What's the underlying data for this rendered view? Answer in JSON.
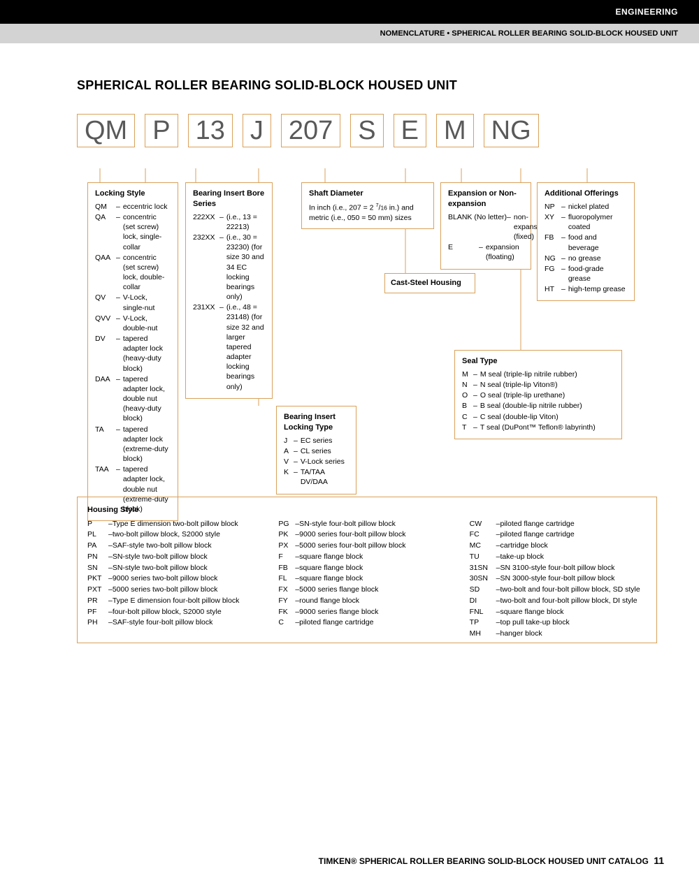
{
  "header": {
    "category": "ENGINEERING",
    "subtitle": "NOMENCLATURE • SPHERICAL ROLLER BEARING SOLID-BLOCK HOUSED UNIT"
  },
  "title": "SPHERICAL ROLLER BEARING SOLID-BLOCK HOUSED UNIT",
  "code_parts": [
    "QM",
    "P",
    "13",
    "J",
    "207",
    "S",
    "E",
    "M",
    "NG"
  ],
  "colors": {
    "box_border": "#d9a15a",
    "code_text": "#595959",
    "line": "#d9a15a",
    "black": "#000000",
    "gray_bg": "#d3d3d3"
  },
  "locking_style": {
    "title": "Locking Style",
    "items": [
      {
        "code": "QM",
        "desc": "eccentric lock"
      },
      {
        "code": "QA",
        "desc": "concentric (set screw) lock, single-collar"
      },
      {
        "code": "QAA",
        "desc": "concentric (set screw) lock, double-collar"
      },
      {
        "code": "QV",
        "desc": "V-Lock, single-nut"
      },
      {
        "code": "QVV",
        "desc": "V-Lock, double-nut"
      },
      {
        "code": "DV",
        "desc": "tapered adapter lock (heavy-duty block)"
      },
      {
        "code": "DAA",
        "desc": "tapered adapter lock, double nut (heavy-duty block)"
      },
      {
        "code": "TA",
        "desc": "tapered adapter lock (extreme-duty block)"
      },
      {
        "code": "TAA",
        "desc": "tapered adapter lock, double nut (extreme-duty block)"
      }
    ]
  },
  "bearing_insert": {
    "title": "Bearing Insert Bore Series",
    "items": [
      {
        "code": "222XX",
        "desc": "(i.e., 13 = 22213)"
      },
      {
        "code": "232XX",
        "desc": "(i.e., 30 = 23230) (for size 30 and 34 EC locking bearings only)"
      },
      {
        "code": "231XX",
        "desc": "(i.e., 48 = 23148) (for size 32 and larger tapered adapter locking bearings only)"
      }
    ]
  },
  "locking_type": {
    "title": "Bearing Insert Locking Type",
    "items": [
      {
        "code": "J",
        "desc": "EC series"
      },
      {
        "code": "A",
        "desc": "CL series"
      },
      {
        "code": "V",
        "desc": "V-Lock series"
      },
      {
        "code": "K",
        "desc": "TA/TAA DV/DAA"
      }
    ]
  },
  "shaft_diameter": {
    "title": "Shaft Diameter",
    "desc": "In inch (i.e., 207 = 2 7/16 in.) and metric (i.e., 050 = 50 mm) sizes"
  },
  "cast_steel": {
    "title": "Cast-Steel Housing"
  },
  "expansion": {
    "title": "Expansion or Non-expansion",
    "items": [
      {
        "code": "BLANK (No letter)",
        "desc": "non-expansion (fixed)"
      },
      {
        "code": "E",
        "desc": "expansion (floating)"
      }
    ]
  },
  "seal_type": {
    "title": "Seal Type",
    "items": [
      {
        "code": "M",
        "desc": "M seal (triple-lip nitrile rubber)"
      },
      {
        "code": "N",
        "desc": "N seal (triple-lip Viton®)"
      },
      {
        "code": "O",
        "desc": "O seal (triple-lip urethane)"
      },
      {
        "code": "B",
        "desc": "B seal (double-lip nitrile rubber)"
      },
      {
        "code": "C",
        "desc": "C seal (double-lip Viton)"
      },
      {
        "code": "T",
        "desc": "T seal (DuPont™ Teflon® labyrinth)"
      }
    ]
  },
  "additional": {
    "title": "Additional Offerings",
    "items": [
      {
        "code": "NP",
        "desc": "nickel plated"
      },
      {
        "code": "XY",
        "desc": "fluoropolymer coated"
      },
      {
        "code": "FB",
        "desc": "food and beverage"
      },
      {
        "code": "NG",
        "desc": "no grease"
      },
      {
        "code": "FG",
        "desc": "food-grade grease"
      },
      {
        "code": "HT",
        "desc": "high-temp grease"
      }
    ]
  },
  "housing": {
    "title": "Housing Style",
    "col1": [
      {
        "code": "P",
        "desc": "Type E dimension two-bolt pillow block"
      },
      {
        "code": "PL",
        "desc": "two-bolt pillow block, S2000 style"
      },
      {
        "code": "PA",
        "desc": "SAF-style two-bolt pillow block"
      },
      {
        "code": "PN",
        "desc": "SN-style two-bolt pillow block"
      },
      {
        "code": "SN",
        "desc": "SN-style two-bolt pillow block"
      },
      {
        "code": "PKT",
        "desc": "9000 series two-bolt pillow block"
      },
      {
        "code": "PXT",
        "desc": "5000 series two-bolt pillow block"
      },
      {
        "code": "PR",
        "desc": "Type E dimension four-bolt pillow block"
      },
      {
        "code": "PF",
        "desc": "four-bolt pillow block, S2000 style"
      },
      {
        "code": "PH",
        "desc": "SAF-style four-bolt pillow block"
      }
    ],
    "col2": [
      {
        "code": "PG",
        "desc": "SN-style four-bolt pillow block"
      },
      {
        "code": "PK",
        "desc": "9000 series four-bolt pillow block"
      },
      {
        "code": "PX",
        "desc": "5000 series four-bolt pillow block"
      },
      {
        "code": "F",
        "desc": "square flange block"
      },
      {
        "code": "FB",
        "desc": "square flange block"
      },
      {
        "code": "FL",
        "desc": "square flange block"
      },
      {
        "code": "FX",
        "desc": "5000 series flange block"
      },
      {
        "code": "FY",
        "desc": "round flange block"
      },
      {
        "code": "FK",
        "desc": "9000 series flange block"
      },
      {
        "code": "C",
        "desc": "piloted flange cartridge"
      }
    ],
    "col3": [
      {
        "code": "CW",
        "desc": "piloted flange cartridge"
      },
      {
        "code": "FC",
        "desc": "piloted flange cartridge"
      },
      {
        "code": "MC",
        "desc": "cartridge block"
      },
      {
        "code": "TU",
        "desc": "take-up block"
      },
      {
        "code": "31SN",
        "desc": "SN 3100-style four-bolt pillow block"
      },
      {
        "code": "30SN",
        "desc": "SN 3000-style four-bolt pillow block"
      },
      {
        "code": "SD",
        "desc": "two-bolt and four-bolt pillow block, SD style"
      },
      {
        "code": "DI",
        "desc": "two-bolt and four-bolt pillow block, DI style"
      },
      {
        "code": "FNL",
        "desc": "square flange block"
      },
      {
        "code": "TP",
        "desc": "top pull take-up block"
      },
      {
        "code": "MH",
        "desc": "hanger block"
      }
    ]
  },
  "footer": {
    "text": "TIMKEN® SPHERICAL ROLLER BEARING SOLID-BLOCK HOUSED UNIT CATALOG",
    "page": "11"
  }
}
